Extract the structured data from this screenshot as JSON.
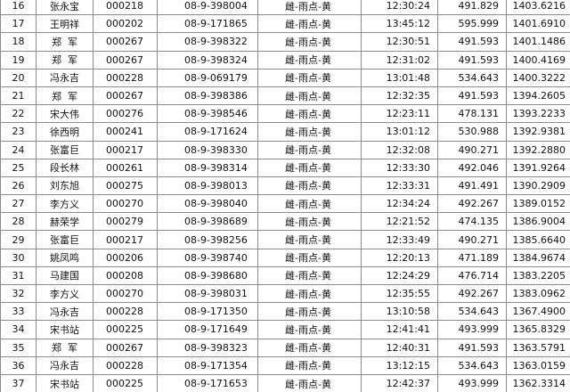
{
  "table": {
    "rows": [
      [
        "16",
        "张永宝",
        "000218",
        "08-9-398004",
        "雌-雨点-黄",
        "12:30:24",
        "491.829",
        "1403.6216"
      ],
      [
        "17",
        "王明祥",
        "000202",
        "08-9-171865",
        "雌-雨点-黄",
        "13:45:12",
        "595.999",
        "1401.6910"
      ],
      [
        "18",
        "郑  军",
        "000267",
        "08-9-398322",
        "雌-雨点-黄",
        "12:30:51",
        "491.593",
        "1401.1486"
      ],
      [
        "19",
        "郑  军",
        "000267",
        "08-9-398324",
        "雌-雨点-黄",
        "12:31:02",
        "491.593",
        "1400.4169"
      ],
      [
        "20",
        "冯永吉",
        "000228",
        "08-9-069179",
        "雌-雨点-黄",
        "13:01:48",
        "534.643",
        "1400.3222"
      ],
      [
        "21",
        "郑  军",
        "000267",
        "08-9-398386",
        "雌-雨点-黄",
        "12:32:35",
        "491.593",
        "1394.2605"
      ],
      [
        "22",
        "宋大伟",
        "000276",
        "08-9-398546",
        "雌-雨点-黄",
        "12:23:11",
        "478.131",
        "1393.2233"
      ],
      [
        "23",
        "徐西明",
        "000241",
        "08-9-171624",
        "雌-雨点-黄",
        "13:01:12",
        "530.988",
        "1392.9381"
      ],
      [
        "24",
        "张富巨",
        "000217",
        "08-9-398330",
        "雌-雨点-黄",
        "12:32:08",
        "490.271",
        "1392.2880"
      ],
      [
        "25",
        "段长林",
        "000261",
        "08-9-398314",
        "雌-雨点-黄",
        "12:33:30",
        "492.046",
        "1391.9264"
      ],
      [
        "26",
        "刘东旭",
        "000275",
        "08-9-398013",
        "雌-雨点-黄",
        "12:33:31",
        "491.491",
        "1390.2909"
      ],
      [
        "27",
        "李方义",
        "000270",
        "08-9-398040",
        "雌-雨点-黄",
        "12:34:24",
        "492.267",
        "1389.0152"
      ],
      [
        "28",
        "赫荣学",
        "000279",
        "08-9-398689",
        "雌-雨点-黄",
        "12:21:52",
        "474.135",
        "1386.9004"
      ],
      [
        "29",
        "张富巨",
        "000217",
        "08-9-398256",
        "雌-雨点-黄",
        "12:33:49",
        "490.271",
        "1385.6640"
      ],
      [
        "30",
        "姚凤鸣",
        "000206",
        "08-9-398740",
        "雌-雨点-黄",
        "12:20:13",
        "471.189",
        "1384.9674"
      ],
      [
        "31",
        "马建国",
        "000208",
        "08-9-398680",
        "雌-雨点-黄",
        "12:24:29",
        "476.714",
        "1383.2205"
      ],
      [
        "32",
        "李方义",
        "000270",
        "08-9-398031",
        "雌-雨点-黄",
        "12:35:55",
        "492.267",
        "1383.0962"
      ],
      [
        "33",
        "冯永吉",
        "000228",
        "08-9-171350",
        "雌-雨点-黄",
        "13:10:58",
        "534.643",
        "1367.4900"
      ],
      [
        "34",
        "宋书站",
        "000225",
        "08-9-171649",
        "雌-雨点-黄",
        "12:41:41",
        "493.999",
        "1365.8329"
      ],
      [
        "35",
        "郑  军",
        "000267",
        "08-9-398323",
        "雌-雨点-黄",
        "12:40:31",
        "491.593",
        "1363.5791"
      ],
      [
        "36",
        "冯永吉",
        "000228",
        "08-9-171354",
        "雌-雨点-黄",
        "13:12:15",
        "534.643",
        "1363.0159"
      ],
      [
        "37",
        "宋书站",
        "000225",
        "08-9-171653",
        "雌-雨点-黄",
        "12:42:37",
        "493.999",
        "1362.3314"
      ]
    ]
  }
}
